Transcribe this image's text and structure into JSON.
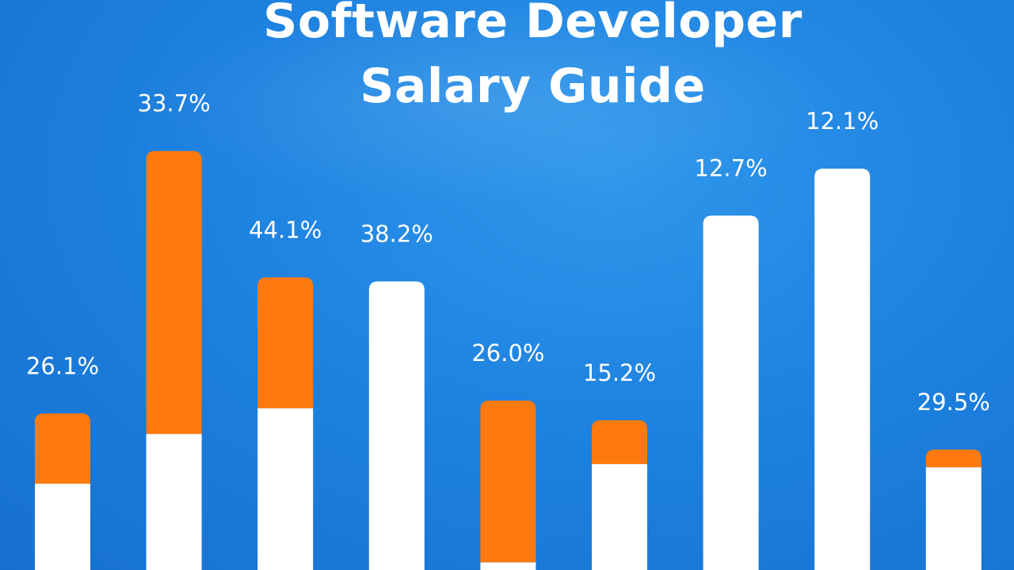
{
  "colors": {
    "background": "#1e82e0",
    "orange": "#ff7a0e",
    "white": "#ffffff"
  },
  "chart_data": {
    "type": "bar",
    "title_lines": [
      "Software Developer",
      "Salary Guide"
    ],
    "title": "Software Developer Salary Guide",
    "xlabel": "",
    "ylabel": "",
    "grid": false,
    "legend": "none",
    "ylim": [
      0,
      100
    ],
    "categories": [
      "",
      "",
      "",
      "",
      "",
      "",
      "",
      "",
      ""
    ],
    "labels": [
      "26.1%",
      "33.7%",
      "44.1%",
      "38.2%",
      "26.0%",
      "15.2%",
      "12.7%",
      "12.1%",
      "29.5%"
    ],
    "series": [
      {
        "values": [
          21.5,
          33.9,
          40.3,
          71.9,
          1.9,
          26.4,
          88.3,
          100,
          25.6
        ],
        "color": "#ffffff"
      },
      {
        "values": [
          17.5,
          70.5,
          32.6,
          0,
          40.3,
          10.9,
          0,
          0,
          4.4
        ],
        "color": "#ff7a0e"
      }
    ]
  }
}
